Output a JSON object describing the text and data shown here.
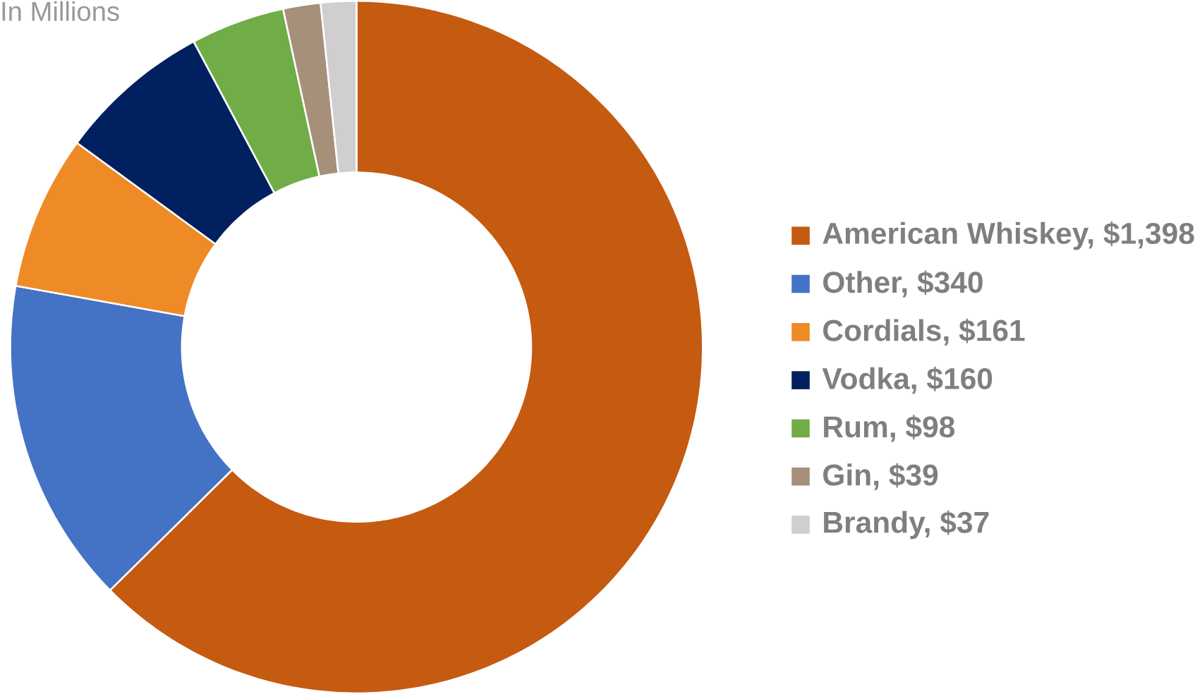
{
  "chart_data": {
    "type": "donut",
    "subtitle": "In Millions",
    "categories": [
      "American Whiskey, $1,398",
      "Other,  $340",
      "Cordials, $161",
      "Vodka, $160",
      "Rum, $98",
      "Gin, $39",
      "Brandy, $37"
    ],
    "values": [
      1398,
      340,
      161,
      160,
      98,
      39,
      37
    ],
    "colors": [
      "#c55a11",
      "#4472c4",
      "#ee8b27",
      "#002060",
      "#70ad47",
      "#a6907a",
      "#d0cece"
    ],
    "legend": "right"
  }
}
